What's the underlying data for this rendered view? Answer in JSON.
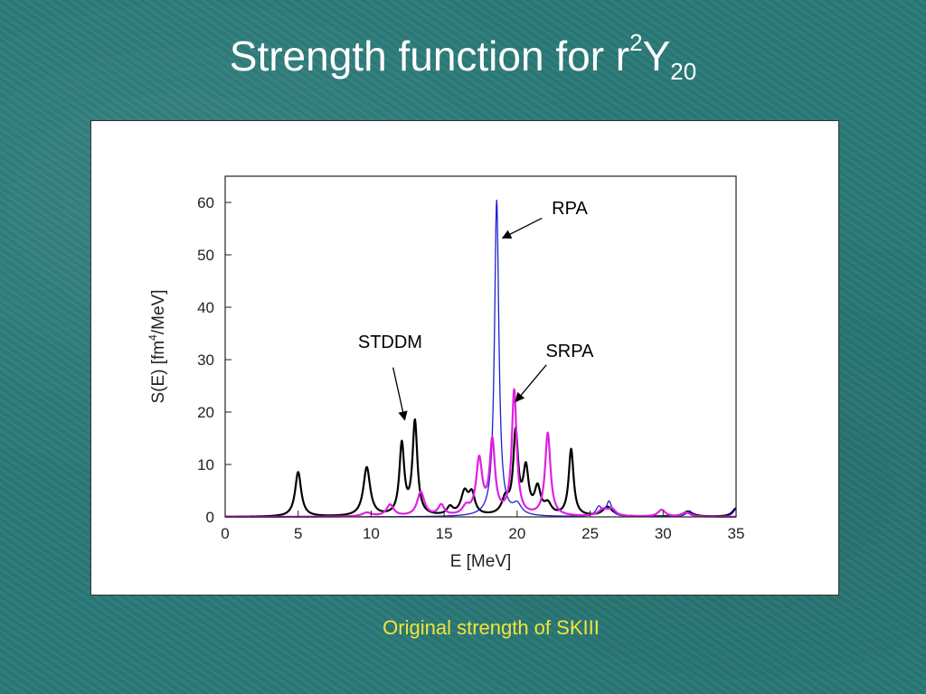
{
  "slide": {
    "title_main": "Strength function for r",
    "title_sup": "2",
    "title_y": "Y",
    "title_sub": "20",
    "caption": "Original strength of SKIII"
  },
  "colors": {
    "background": "#2a7a78",
    "title": "#ffffff",
    "caption": "#f5e43a",
    "stddm": "#000000",
    "rpa": "#1f1fd0",
    "srpa": "#e020e0"
  },
  "chart_data": {
    "type": "line",
    "xlabel": "E [MeV]",
    "ylabel_parts": [
      "S(E) [fm",
      "4",
      "/MeV]"
    ],
    "xlim": [
      0,
      35
    ],
    "ylim": [
      0,
      65
    ],
    "xticks": [
      0,
      5,
      10,
      15,
      20,
      25,
      30,
      35
    ],
    "yticks": [
      0,
      10,
      20,
      30,
      40,
      50,
      60
    ],
    "grid": false,
    "annotations": [
      {
        "text": "RPA",
        "x": 23.6,
        "y": 57.8,
        "arrow_to": [
          19.0,
          53.2
        ],
        "arrow_from": [
          21.7,
          57.0
        ]
      },
      {
        "text": "STDDM",
        "x": 11.3,
        "y": 32.2,
        "arrow_to": [
          12.3,
          18.5
        ],
        "arrow_from": [
          11.5,
          28.5
        ]
      },
      {
        "text": "SRPA",
        "x": 23.6,
        "y": 30.5,
        "arrow_to": [
          19.9,
          22.0
        ],
        "arrow_from": [
          22.0,
          29.0
        ]
      }
    ],
    "series": [
      {
        "key": "stddm",
        "peaks": [
          {
            "e": 5.0,
            "h": 8.5,
            "w": 0.25
          },
          {
            "e": 9.7,
            "h": 9.3,
            "w": 0.28
          },
          {
            "e": 12.1,
            "h": 13.5,
            "w": 0.2
          },
          {
            "e": 13.0,
            "h": 17.8,
            "w": 0.2
          },
          {
            "e": 15.4,
            "h": 1.5,
            "w": 0.25
          },
          {
            "e": 16.4,
            "h": 4.3,
            "w": 0.3
          },
          {
            "e": 16.9,
            "h": 3.8,
            "w": 0.25
          },
          {
            "e": 19.2,
            "h": 3.0,
            "w": 0.3
          },
          {
            "e": 19.9,
            "h": 15.5,
            "w": 0.2
          },
          {
            "e": 20.6,
            "h": 8.5,
            "w": 0.22
          },
          {
            "e": 21.4,
            "h": 5.0,
            "w": 0.25
          },
          {
            "e": 22.1,
            "h": 2.0,
            "w": 0.3
          },
          {
            "e": 23.7,
            "h": 12.7,
            "w": 0.2
          },
          {
            "e": 26.2,
            "h": 1.8,
            "w": 0.4
          },
          {
            "e": 31.7,
            "h": 1.0,
            "w": 0.4
          },
          {
            "e": 35.0,
            "h": 1.6,
            "w": 0.3
          }
        ]
      },
      {
        "key": "rpa",
        "peaks": [
          {
            "e": 18.6,
            "h": 60.3,
            "w": 0.18
          },
          {
            "e": 20.0,
            "h": 2.0,
            "w": 0.35
          },
          {
            "e": 25.6,
            "h": 1.8,
            "w": 0.25
          },
          {
            "e": 26.3,
            "h": 2.8,
            "w": 0.22
          },
          {
            "e": 31.8,
            "h": 1.1,
            "w": 0.25
          },
          {
            "e": 35.0,
            "h": 1.4,
            "w": 0.25
          }
        ]
      },
      {
        "key": "srpa",
        "peaks": [
          {
            "e": 9.7,
            "h": 0.7,
            "w": 0.4
          },
          {
            "e": 11.3,
            "h": 2.2,
            "w": 0.3
          },
          {
            "e": 13.4,
            "h": 4.6,
            "w": 0.3
          },
          {
            "e": 14.8,
            "h": 2.0,
            "w": 0.25
          },
          {
            "e": 16.5,
            "h": 1.5,
            "w": 0.3
          },
          {
            "e": 17.4,
            "h": 10.5,
            "w": 0.25
          },
          {
            "e": 18.3,
            "h": 14.0,
            "w": 0.22
          },
          {
            "e": 19.8,
            "h": 23.8,
            "w": 0.2
          },
          {
            "e": 22.1,
            "h": 15.8,
            "w": 0.22
          },
          {
            "e": 25.9,
            "h": 1.3,
            "w": 0.4
          },
          {
            "e": 26.5,
            "h": 1.2,
            "w": 0.3
          },
          {
            "e": 29.9,
            "h": 1.3,
            "w": 0.3
          },
          {
            "e": 31.6,
            "h": 0.8,
            "w": 0.3
          }
        ]
      }
    ]
  }
}
